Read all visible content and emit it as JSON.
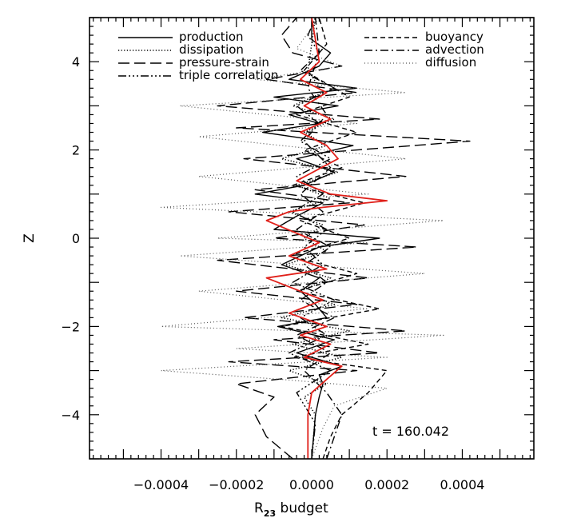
{
  "chart_data": {
    "type": "line",
    "title": "",
    "xlabel": "R",
    "xlabel_sub": "23",
    "xlabel_suffix": " budget",
    "ylabel": "Z",
    "xlim": [
      -0.00059,
      0.00059
    ],
    "ylim": [
      -5,
      5
    ],
    "x_ticks": [
      -0.0004,
      -0.0002,
      0.0,
      0.0002,
      0.0004
    ],
    "x_tick_labels": [
      "−0.0004",
      "−0.0002",
      "0.0000",
      "0.0002",
      "0.0004"
    ],
    "y_ticks": [
      -4,
      -2,
      0,
      2,
      4
    ],
    "y_tick_labels": [
      "−4",
      "−2",
      "0",
      "2",
      "4"
    ],
    "annotation": "t = 160.042",
    "legend_position": "top",
    "grid": false,
    "series": [
      {
        "name": "production",
        "style": "solid",
        "color": "#000000",
        "x": [
          0.0,
          1e-05,
          2e-05,
          3e-05,
          2e-05,
          8e-05,
          -4e-05,
          6e-05,
          -9e-05,
          4e-05,
          1e-05,
          -3e-05,
          2e-05,
          -8e-05,
          2e-05,
          0.00018,
          -0.0001,
          -4e-05,
          3e-05,
          -0.00015,
          -2e-05,
          6e-05,
          -4e-05,
          0.00011,
          -0.00013,
          2e-05,
          -6e-05,
          7e-05,
          -0.0001,
          0.00012,
          -6e-05,
          2e-05,
          5e-05,
          0.0,
          0.0
        ],
        "y": [
          -5.0,
          -4.0,
          -3.6,
          -3.3,
          -3.1,
          -2.9,
          -2.6,
          -2.3,
          -2.0,
          -1.8,
          -1.5,
          -1.2,
          -0.9,
          -0.6,
          -0.2,
          0.0,
          0.2,
          0.5,
          0.8,
          1.0,
          1.2,
          1.5,
          1.8,
          2.1,
          2.4,
          2.6,
          2.8,
          3.0,
          3.2,
          3.4,
          3.6,
          3.9,
          4.2,
          4.5,
          5.0
        ]
      },
      {
        "name": "dissipation",
        "style": "dotted",
        "color": "#000000",
        "x": [
          0.0,
          1e-05,
          -2e-05,
          4e-05,
          -6e-05,
          8e-05,
          -5e-05,
          0.0001,
          -8e-05,
          6e-05,
          -3e-05,
          5e-05,
          -7e-05,
          4e-05,
          -2e-05,
          3e-05,
          -6e-05,
          5e-05,
          -4e-05,
          7e-05,
          -8e-05,
          4e-05,
          -2e-05,
          6e-05,
          -5e-05,
          3e-05,
          -1e-05,
          1e-05
        ],
        "y": [
          -5.0,
          -4.0,
          -3.6,
          -3.3,
          -3.0,
          -2.7,
          -2.4,
          -2.1,
          -1.8,
          -1.5,
          -1.2,
          -0.9,
          -0.6,
          -0.3,
          0.0,
          0.3,
          0.6,
          0.9,
          1.2,
          1.5,
          1.8,
          2.1,
          2.4,
          2.7,
          3.0,
          3.3,
          3.8,
          5.0
        ]
      },
      {
        "name": "pressure-strain",
        "style": "longdash",
        "color": "#000000",
        "x": [
          -5e-05,
          -0.00012,
          -0.00015,
          -0.0001,
          -0.0002,
          0.00012,
          -0.00022,
          0.00018,
          -0.0001,
          0.00025,
          -0.00018,
          0.00012,
          -0.0002,
          0.00015,
          -0.00025,
          0.00028,
          -0.0001,
          0.00014,
          -0.00022,
          0.0001,
          -0.00015,
          0.00025,
          -0.00018,
          0.00042,
          -0.0002,
          0.00018,
          -0.00025,
          0.00012,
          -0.00012,
          8e-05,
          -5e-05,
          -8e-05,
          -4e-05
        ],
        "y": [
          -5.0,
          -4.5,
          -4.0,
          -3.6,
          -3.3,
          -3.0,
          -2.8,
          -2.6,
          -2.3,
          -2.1,
          -1.8,
          -1.5,
          -1.2,
          -0.9,
          -0.5,
          -0.2,
          0.0,
          0.3,
          0.6,
          0.8,
          1.1,
          1.4,
          1.8,
          2.2,
          2.5,
          2.7,
          3.0,
          3.3,
          3.6,
          3.9,
          4.2,
          4.6,
          5.0
        ]
      },
      {
        "name": "triple correlation",
        "style": "dashdotdotdot",
        "color": "#000000",
        "x": [
          0.0,
          1e-05,
          -4e-05,
          5e-05,
          -6e-05,
          4e-05,
          -3e-05,
          6e-05,
          -5e-05,
          3e-05,
          -2e-05,
          4e-05,
          -5e-05,
          3e-05,
          -4e-05,
          5e-05,
          -3e-05,
          2e-05,
          -4e-05,
          6e-05,
          -3e-05,
          2e-05,
          -1e-05,
          1e-05
        ],
        "y": [
          -5.0,
          -4.2,
          -3.5,
          -3.0,
          -2.6,
          -2.2,
          -1.8,
          -1.4,
          -1.0,
          -0.6,
          -0.2,
          0.2,
          0.6,
          1.0,
          1.4,
          1.8,
          2.2,
          2.6,
          3.0,
          3.4,
          3.8,
          4.2,
          4.6,
          5.0
        ]
      },
      {
        "name": "buoyancy",
        "style": "shortdash",
        "color": "#000000",
        "x": [
          3e-05,
          5e-05,
          8e-05,
          0.00015,
          0.0002,
          -5e-05,
          0.00015,
          -8e-05,
          0.00018,
          -4e-05,
          0.00012,
          -6e-05,
          0.0001,
          -3e-05,
          0.00014,
          -5e-05,
          8e-05,
          -2e-05,
          0.00012,
          -4e-05,
          0.0001,
          -2e-05,
          4e-05,
          2e-05
        ],
        "y": [
          -5.0,
          -4.5,
          -4.0,
          -3.5,
          -3.0,
          -2.7,
          -2.4,
          -2.0,
          -1.6,
          -1.2,
          -0.8,
          -0.4,
          0.0,
          0.4,
          0.8,
          1.2,
          1.6,
          2.0,
          2.4,
          2.8,
          3.2,
          3.8,
          4.4,
          5.0
        ]
      },
      {
        "name": "advection",
        "style": "dashdot",
        "color": "#000000",
        "x": [
          4e-05,
          6e-05,
          8e-05,
          4e-05,
          -2e-05,
          5e-05,
          -4e-05,
          6e-05,
          -3e-05,
          4e-05,
          -2e-05,
          5e-05,
          -4e-05,
          3e-05,
          -3e-05,
          5e-05,
          -2e-05,
          4e-05,
          -1e-05,
          2e-05,
          1e-05
        ],
        "y": [
          -5.0,
          -4.5,
          -4.0,
          -3.5,
          -3.0,
          -2.6,
          -2.2,
          -1.8,
          -1.4,
          -1.0,
          -0.6,
          -0.2,
          0.2,
          0.6,
          1.0,
          1.6,
          2.2,
          2.8,
          3.4,
          4.2,
          5.0
        ]
      },
      {
        "name": "diffusion",
        "style": "finedot",
        "color": "#555555",
        "x": [
          0.0,
          3e-05,
          6e-05,
          0.0002,
          -8e-05,
          -0.0004,
          0.0002,
          -0.0002,
          0.00035,
          -0.0004,
          0.00015,
          -0.0003,
          0.0003,
          -0.00035,
          0.00015,
          -0.00025,
          0.00035,
          -0.0004,
          0.00015,
          -0.0003,
          0.00025,
          -0.0003,
          0.00012,
          -0.00035,
          0.00025,
          -0.00015,
          8e-05,
          -4e-05,
          2e-05
        ],
        "y": [
          -5.0,
          -4.3,
          -3.8,
          -3.4,
          -3.2,
          -3.0,
          -2.7,
          -2.5,
          -2.2,
          -2.0,
          -1.6,
          -1.2,
          -0.8,
          -0.4,
          -0.1,
          0.0,
          0.4,
          0.7,
          1.0,
          1.4,
          1.8,
          2.3,
          2.6,
          3.0,
          3.3,
          3.6,
          3.9,
          4.3,
          5.0
        ]
      },
      {
        "name": "",
        "style": "solid",
        "color": "#e0201a",
        "x": [
          -1e-05,
          -1e-05,
          0.0,
          4e-05,
          8e-05,
          -2e-05,
          5e-05,
          -3e-05,
          4e-05,
          -6e-05,
          3e-05,
          -0.00012,
          4e-05,
          -6e-05,
          2e-05,
          -0.00012,
          -6e-05,
          3e-05,
          0.0002,
          5e-05,
          -4e-05,
          7e-05,
          4e-05,
          -3e-05,
          5e-05,
          -2e-05,
          4e-05,
          -3e-05,
          2e-05,
          0.0
        ],
        "y": [
          -5.0,
          -4.0,
          -3.5,
          -3.2,
          -2.9,
          -2.7,
          -2.4,
          -2.2,
          -2.0,
          -1.7,
          -1.4,
          -0.9,
          -0.7,
          -0.4,
          -0.1,
          0.4,
          0.6,
          0.7,
          0.85,
          1.0,
          1.3,
          1.8,
          2.1,
          2.4,
          2.7,
          3.0,
          3.3,
          3.6,
          4.0,
          5.0
        ]
      }
    ]
  }
}
